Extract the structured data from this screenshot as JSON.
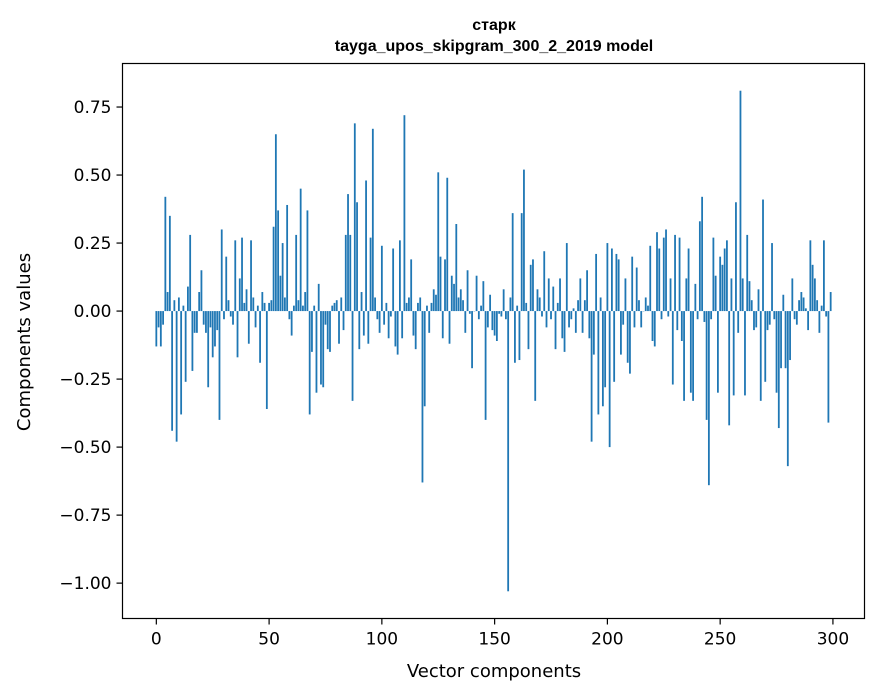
{
  "chart_data": {
    "type": "bar",
    "title": "старк",
    "subtitle": "tayga_upos_skipgram_300_2_2019 model",
    "xlabel": "Vector components",
    "ylabel": "Components values",
    "xlim": [
      -15,
      314
    ],
    "ylim": [
      -1.13,
      0.91
    ],
    "xticks": [
      0,
      50,
      100,
      150,
      200,
      250,
      300
    ],
    "yticks": [
      -1.0,
      -0.75,
      -0.5,
      -0.25,
      0.0,
      0.25,
      0.5,
      0.75
    ],
    "ytick_labels": [
      "−1.00",
      "−0.75",
      "−0.50",
      "−0.25",
      "0.00",
      "0.25",
      "0.50",
      "0.75"
    ],
    "bar_color": "#1f77b4",
    "grid": false,
    "values": [
      -0.13,
      -0.06,
      -0.13,
      -0.05,
      0.42,
      0.07,
      0.35,
      -0.44,
      0.04,
      -0.48,
      0.05,
      -0.38,
      0.02,
      -0.26,
      0.09,
      0.28,
      -0.22,
      -0.08,
      -0.08,
      0.07,
      0.15,
      -0.05,
      -0.08,
      -0.28,
      -0.06,
      -0.17,
      -0.13,
      -0.07,
      -0.4,
      0.3,
      -0.03,
      0.2,
      0.04,
      -0.02,
      -0.05,
      0.26,
      -0.17,
      0.12,
      0.27,
      0.03,
      0.08,
      -0.12,
      0.26,
      0.05,
      -0.06,
      0.02,
      -0.19,
      0.07,
      0.03,
      -0.36,
      0.03,
      0.04,
      0.31,
      0.65,
      0.37,
      0.13,
      0.25,
      0.05,
      0.39,
      -0.03,
      -0.09,
      0.02,
      0.28,
      0.04,
      0.45,
      0.02,
      0.07,
      0.37,
      -0.38,
      -0.15,
      0.02,
      -0.3,
      0.1,
      -0.27,
      -0.28,
      -0.05,
      -0.14,
      -0.15,
      0.02,
      0.03,
      0.04,
      -0.12,
      0.05,
      -0.07,
      0.28,
      0.43,
      0.28,
      -0.33,
      0.69,
      0.4,
      -0.14,
      0.07,
      -0.09,
      0.48,
      -0.12,
      0.27,
      0.67,
      0.05,
      -0.03,
      -0.08,
      0.24,
      -0.05,
      0.03,
      -0.1,
      -0.02,
      0.23,
      -0.13,
      -0.16,
      0.26,
      -0.1,
      0.72,
      0.03,
      0.05,
      0.19,
      -0.09,
      -0.14,
      0.03,
      0.05,
      -0.63,
      -0.35,
      0.02,
      -0.08,
      0.03,
      0.08,
      0.06,
      0.51,
      0.2,
      -0.1,
      0.19,
      0.49,
      -0.12,
      0.13,
      0.1,
      0.32,
      0.05,
      0.08,
      0.04,
      -0.08,
      0.15,
      -0.01,
      -0.21,
      0.0,
      0.13,
      -0.03,
      0.02,
      0.11,
      -0.4,
      -0.06,
      0.06,
      -0.07,
      -0.09,
      -0.11,
      -0.01,
      -0.02,
      0.08,
      -0.03,
      -1.03,
      0.05,
      0.36,
      -0.19,
      0.02,
      -0.18,
      0.36,
      0.52,
      0.03,
      -0.14,
      0.17,
      0.19,
      -0.33,
      0.08,
      0.05,
      -0.02,
      0.22,
      -0.06,
      0.12,
      -0.03,
      0.09,
      -0.14,
      0.03,
      0.12,
      -0.1,
      -0.15,
      0.25,
      -0.06,
      -0.03,
      0.01,
      -0.08,
      0.04,
      0.12,
      -0.08,
      0.04,
      0.15,
      -0.1,
      -0.48,
      -0.16,
      0.21,
      -0.38,
      0.05,
      -0.35,
      -0.28,
      0.25,
      -0.5,
      0.23,
      -0.26,
      0.21,
      0.19,
      -0.16,
      -0.05,
      0.12,
      -0.19,
      -0.23,
      0.2,
      -0.06,
      0.16,
      0.04,
      -0.06,
      0.0,
      0.05,
      0.02,
      0.24,
      -0.11,
      -0.13,
      0.29,
      0.23,
      -0.03,
      0.27,
      0.3,
      -0.02,
      0.12,
      -0.27,
      0.28,
      -0.07,
      0.27,
      -0.11,
      -0.33,
      0.12,
      0.23,
      -0.3,
      -0.33,
      0.1,
      -0.03,
      0.33,
      0.42,
      -0.04,
      -0.4,
      -0.64,
      -0.03,
      0.27,
      0.13,
      -0.3,
      0.2,
      0.17,
      0.23,
      0.26,
      -0.42,
      0.12,
      -0.31,
      0.4,
      -0.08,
      0.81,
      0.12,
      -0.31,
      0.28,
      0.11,
      0.04,
      -0.07,
      -0.06,
      0.08,
      -0.33,
      0.41,
      -0.26,
      -0.07,
      -0.05,
      0.25,
      -0.03,
      -0.3,
      -0.43,
      -0.21,
      0.06,
      -0.21,
      -0.57,
      -0.18,
      0.12,
      -0.03,
      -0.05,
      0.04,
      0.07,
      0.05,
      0.01,
      -0.07,
      0.26,
      0.17,
      0.12,
      0.04,
      -0.08,
      0.02,
      0.26,
      -0.02,
      -0.41,
      0.07
    ]
  }
}
